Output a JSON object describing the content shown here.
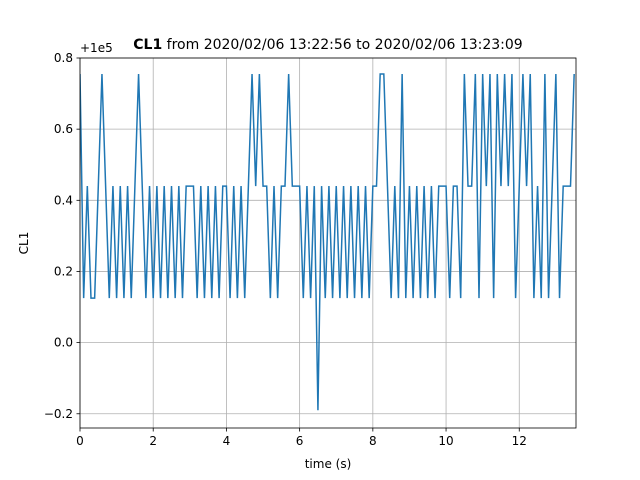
{
  "chart_data": {
    "type": "line",
    "title_bold": "CL1",
    "title": " from 2020/02/06 13:22:56 to 2020/02/06 13:23:09",
    "offset_label": "+1e5",
    "xlabel": "time (s)",
    "ylabel": "CL1",
    "xlim": [
      0,
      13.55
    ],
    "ylim": [
      -0.24,
      0.8
    ],
    "xticks": [
      0,
      2,
      4,
      6,
      8,
      10,
      12
    ],
    "yticks": [
      {
        "value": -0.2,
        "label": "−0.2"
      },
      {
        "value": 0,
        "label": "0.0"
      },
      0.2,
      0.4,
      0.6,
      0.8
    ],
    "grid": true,
    "series": [
      {
        "name": "CL1",
        "color": "#1f77b4",
        "x": [
          0,
          0.1,
          0.2,
          0.3,
          0.4,
          0.5,
          0.6,
          0.7,
          0.8,
          0.9,
          1,
          1.1,
          1.2,
          1.3,
          1.4,
          1.5,
          1.6,
          1.7,
          1.8,
          1.9,
          2,
          2.1,
          2.2,
          2.3,
          2.4,
          2.5,
          2.6,
          2.7,
          2.8,
          2.9,
          3,
          3.1,
          3.2,
          3.3,
          3.4,
          3.5,
          3.6,
          3.7,
          3.8,
          3.9,
          4,
          4.1,
          4.2,
          4.3,
          4.4,
          4.5,
          4.6,
          4.7,
          4.8,
          4.9,
          5,
          5.1,
          5.2,
          5.3,
          5.4,
          5.5,
          5.6,
          5.7,
          5.8,
          5.9,
          6,
          6.1,
          6.2,
          6.3,
          6.4,
          6.5,
          6.6,
          6.7,
          6.8,
          6.9,
          7,
          7.1,
          7.2,
          7.3,
          7.4,
          7.5,
          7.6,
          7.7,
          7.8,
          7.9,
          8,
          8.1,
          8.2,
          8.3,
          8.4,
          8.5,
          8.6,
          8.7,
          8.8,
          8.9,
          9,
          9.1,
          9.2,
          9.3,
          9.4,
          9.5,
          9.6,
          9.7,
          9.8,
          9.9,
          10,
          10.1,
          10.2,
          10.3,
          10.4,
          10.5,
          10.6,
          10.7,
          10.8,
          10.9,
          11,
          11.1,
          11.2,
          11.3,
          11.4,
          11.5,
          11.6,
          11.7,
          11.8,
          11.9,
          12,
          12.1,
          12.2,
          12.3,
          12.4,
          12.5,
          12.6,
          12.7,
          12.8,
          12.9,
          13,
          13.1,
          13.2,
          13.3,
          13.4,
          13.5
        ],
        "values": [
          0.755,
          0.125,
          0.44,
          0.125,
          0.125,
          0.44,
          0.755,
          0.44,
          0.125,
          0.44,
          0.125,
          0.44,
          0.125,
          0.44,
          0.125,
          0.44,
          0.755,
          0.44,
          0.125,
          0.44,
          0.125,
          0.44,
          0.125,
          0.44,
          0.125,
          0.44,
          0.125,
          0.44,
          0.125,
          0.44,
          0.44,
          0.44,
          0.125,
          0.44,
          0.125,
          0.44,
          0.125,
          0.44,
          0.125,
          0.44,
          0.44,
          0.125,
          0.44,
          0.125,
          0.44,
          0.125,
          0.44,
          0.755,
          0.44,
          0.755,
          0.44,
          0.44,
          0.125,
          0.44,
          0.125,
          0.44,
          0.44,
          0.755,
          0.44,
          0.44,
          0.44,
          0.125,
          0.44,
          0.125,
          0.44,
          -0.19,
          0.44,
          0.125,
          0.44,
          0.125,
          0.44,
          0.125,
          0.44,
          0.125,
          0.44,
          0.125,
          0.44,
          0.125,
          0.44,
          0.125,
          0.44,
          0.44,
          0.755,
          0.755,
          0.44,
          0.125,
          0.44,
          0.125,
          0.755,
          0.125,
          0.44,
          0.125,
          0.44,
          0.125,
          0.44,
          0.125,
          0.44,
          0.125,
          0.44,
          0.44,
          0.44,
          0.125,
          0.44,
          0.44,
          0.125,
          0.755,
          0.44,
          0.44,
          0.755,
          0.125,
          0.755,
          0.44,
          0.755,
          0.125,
          0.755,
          0.44,
          0.755,
          0.44,
          0.755,
          0.125,
          0.44,
          0.755,
          0.44,
          0.755,
          0.125,
          0.44,
          0.125,
          0.755,
          0.125,
          0.44,
          0.755,
          0.125,
          0.44,
          0.44,
          0.44,
          0.755
        ]
      }
    ]
  }
}
